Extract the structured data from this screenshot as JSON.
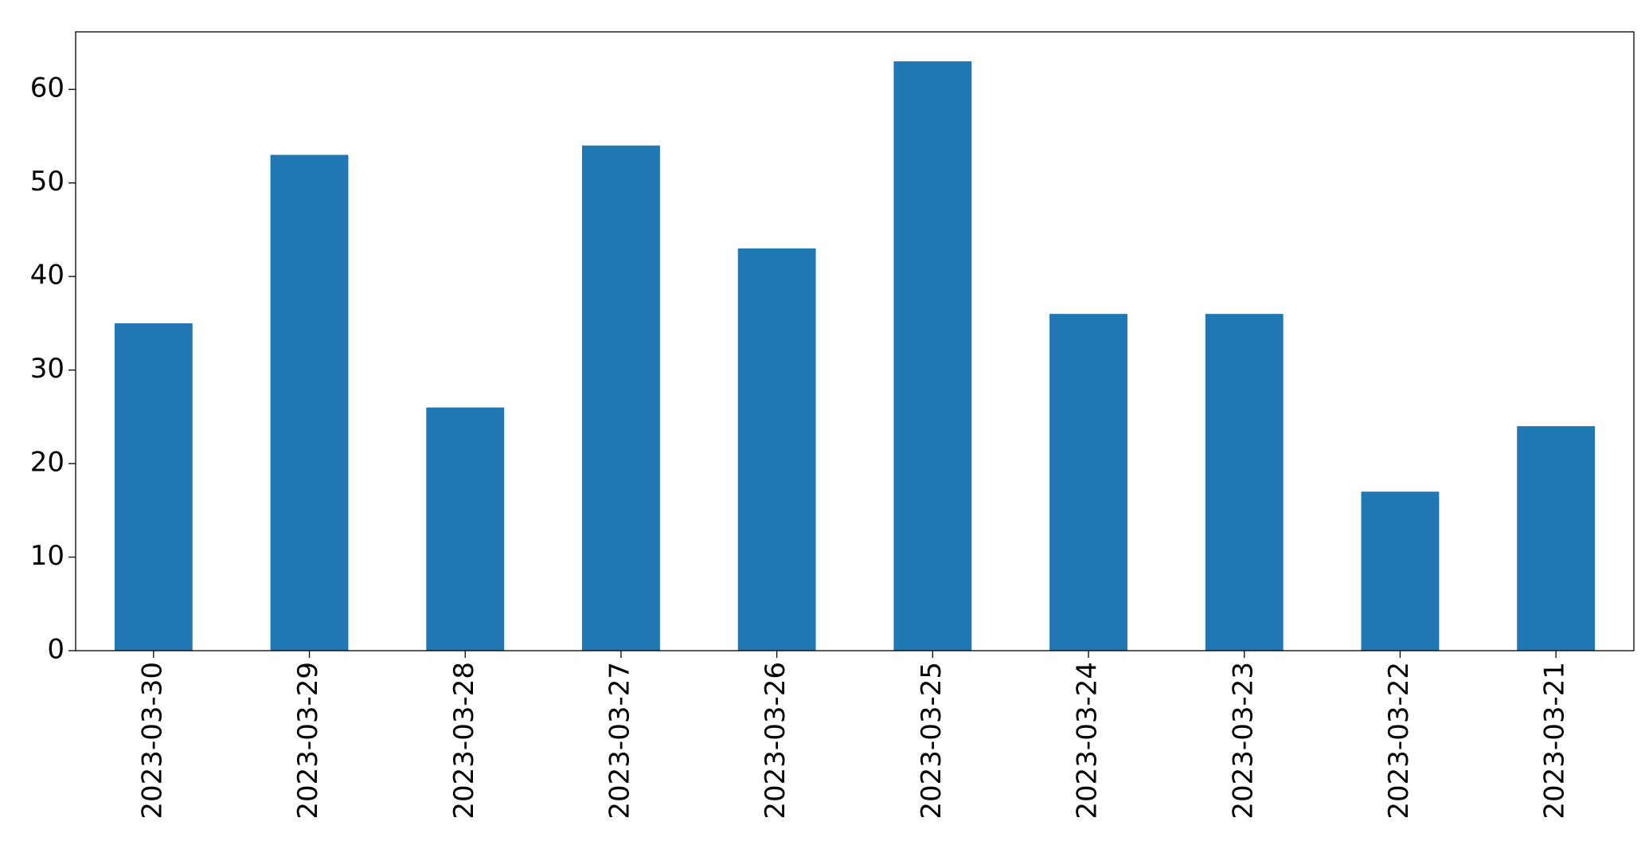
{
  "chart_data": {
    "type": "bar",
    "categories": [
      "2023-03-30",
      "2023-03-29",
      "2023-03-28",
      "2023-03-27",
      "2023-03-26",
      "2023-03-25",
      "2023-03-24",
      "2023-03-23",
      "2023-03-22",
      "2023-03-21"
    ],
    "values": [
      35,
      53,
      26,
      54,
      43,
      63,
      36,
      36,
      17,
      24
    ],
    "color": "#1f77b4",
    "ylim": [
      0,
      66.15
    ],
    "yticks": [
      0,
      10,
      20,
      30,
      40,
      50,
      60
    ],
    "grid": false
  }
}
